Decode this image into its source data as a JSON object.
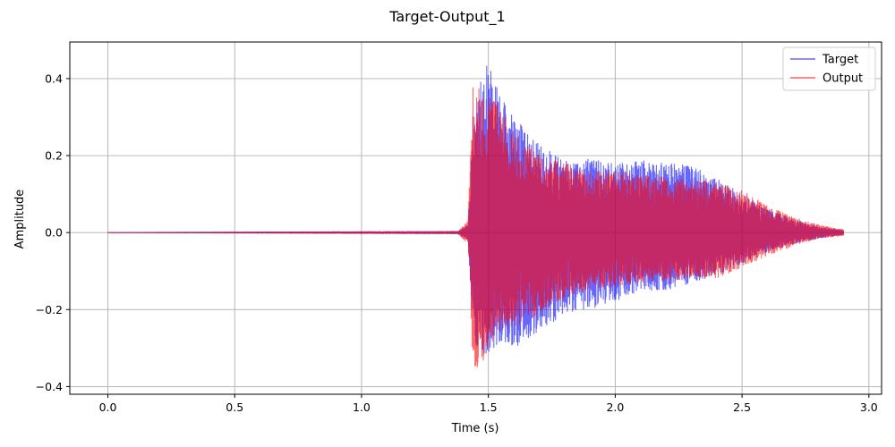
{
  "chart_data": {
    "type": "line",
    "title": "Target-Output_1",
    "xlabel": "Time (s)",
    "ylabel": "Amplitude",
    "xlim": [
      -0.15,
      3.05
    ],
    "ylim": [
      -0.42,
      0.495
    ],
    "xticks": [
      0.0,
      0.5,
      1.0,
      1.5,
      2.0,
      2.5,
      3.0
    ],
    "xtick_labels": [
      "0.0",
      "0.5",
      "1.0",
      "1.5",
      "2.0",
      "2.5",
      "3.0"
    ],
    "yticks": [
      -0.4,
      -0.2,
      0.0,
      0.2,
      0.4
    ],
    "ytick_labels": [
      "−0.4",
      "−0.2",
      "0.0",
      "0.2",
      "0.4"
    ],
    "grid": true,
    "legend_position": "top-right",
    "series": [
      {
        "name": "Target",
        "color": "#0000ff",
        "x_range": [
          0.0,
          2.9
        ],
        "envelope_description": "silence until ~1.4 s, sharp attack at ~1.43 s, decaying oscillation",
        "envelope": {
          "t": [
            0.0,
            1.38,
            1.42,
            1.44,
            1.47,
            1.5,
            1.55,
            1.6,
            1.7,
            1.8,
            1.9,
            2.0,
            2.1,
            2.2,
            2.3,
            2.4,
            2.5,
            2.6,
            2.7,
            2.8,
            2.9
          ],
          "pos": [
            0.0,
            0.003,
            0.02,
            0.32,
            0.4,
            0.45,
            0.35,
            0.3,
            0.23,
            0.19,
            0.19,
            0.18,
            0.19,
            0.18,
            0.18,
            0.14,
            0.1,
            0.06,
            0.035,
            0.015,
            0.005
          ],
          "neg": [
            0.0,
            -0.003,
            -0.02,
            -0.27,
            -0.33,
            -0.32,
            -0.28,
            -0.3,
            -0.26,
            -0.21,
            -0.2,
            -0.18,
            -0.15,
            -0.15,
            -0.13,
            -0.11,
            -0.08,
            -0.05,
            -0.03,
            -0.015,
            -0.005
          ]
        }
      },
      {
        "name": "Output",
        "color": "#ff0000",
        "x_range": [
          0.0,
          2.9
        ],
        "envelope_description": "silence until ~1.4 s, sharp attack at ~1.43 s, decaying oscillation",
        "envelope": {
          "t": [
            0.0,
            1.38,
            1.42,
            1.44,
            1.47,
            1.5,
            1.55,
            1.6,
            1.7,
            1.8,
            1.9,
            2.0,
            2.1,
            2.2,
            2.3,
            2.4,
            2.5,
            2.6,
            2.7,
            2.8,
            2.9
          ],
          "pos": [
            0.0,
            0.003,
            0.03,
            0.4,
            0.38,
            0.35,
            0.33,
            0.26,
            0.2,
            0.18,
            0.16,
            0.16,
            0.15,
            0.15,
            0.14,
            0.13,
            0.11,
            0.07,
            0.04,
            0.02,
            0.008
          ],
          "neg": [
            0.0,
            -0.003,
            -0.03,
            -0.37,
            -0.36,
            -0.3,
            -0.25,
            -0.26,
            -0.21,
            -0.17,
            -0.15,
            -0.14,
            -0.13,
            -0.13,
            -0.12,
            -0.12,
            -0.09,
            -0.06,
            -0.035,
            -0.015,
            -0.008
          ]
        }
      }
    ]
  }
}
